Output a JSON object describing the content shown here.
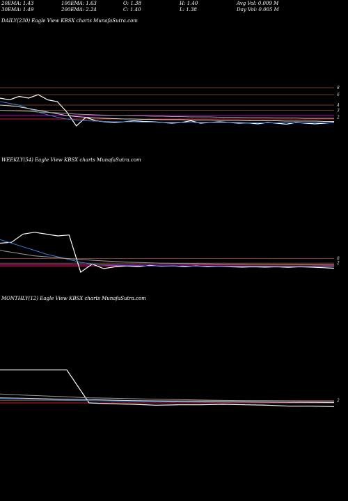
{
  "header": {
    "stats": [
      {
        "id": "ema20",
        "text": "20EMA: 1.43"
      },
      {
        "id": "ema100",
        "text": "100EMA: 1.63"
      },
      {
        "id": "open",
        "text": "O: 1.38"
      },
      {
        "id": "high",
        "text": "H: 1.40"
      },
      {
        "id": "avgvol",
        "text": "Avg Vol: 0.009 M"
      },
      {
        "id": "ema30",
        "text": "30EMA: 1.49"
      },
      {
        "id": "ema200",
        "text": "200EMA: 2.24"
      },
      {
        "id": "close",
        "text": "C: 1.40"
      },
      {
        "id": "low",
        "text": "L: 1.38"
      },
      {
        "id": "dayvol",
        "text": "Day Vol: 0.005 M"
      }
    ]
  },
  "chart_data": [
    {
      "type": "line",
      "title": "DAILY(230) Eagle   View  KBSX  charts MunafaSutra.com",
      "ylim": [
        1.2,
        2.5
      ],
      "y_axis_labels": [
        "8",
        "6",
        "4",
        "3",
        "2"
      ],
      "y_axis_values": [
        2.4,
        2.2,
        1.9,
        1.75,
        1.55
      ],
      "hlines": [
        {
          "y": 2.4,
          "color": "#a0522d"
        },
        {
          "y": 2.2,
          "color": "#a0522d"
        },
        {
          "y": 1.9,
          "color": "#a0522d"
        },
        {
          "y": 1.75,
          "color": "#a0522d"
        },
        {
          "y": 1.6,
          "color": "#ff00ff"
        },
        {
          "y": 1.5,
          "color": "#ff3030"
        }
      ],
      "series": [
        {
          "color": "#ffffff",
          "values": [
            2.1,
            2.05,
            2.15,
            2.1,
            2.2,
            2.05,
            2.0,
            1.7,
            1.3,
            1.55,
            1.45,
            1.42,
            1.4,
            1.42,
            1.45,
            1.43,
            1.42,
            1.4,
            1.38,
            1.4,
            1.45,
            1.38,
            1.4,
            1.42,
            1.4,
            1.38,
            1.39,
            1.36,
            1.4,
            1.38,
            1.35,
            1.4,
            1.38,
            1.36,
            1.38,
            1.4
          ]
        },
        {
          "color": "#3a7bd5",
          "values": [
            2.0,
            1.95,
            1.9,
            1.8,
            1.7,
            1.62,
            1.55,
            1.5,
            1.47,
            1.45,
            1.44,
            1.43,
            1.42,
            1.42,
            1.42,
            1.41,
            1.41,
            1.4,
            1.4,
            1.4,
            1.4,
            1.4,
            1.4,
            1.4,
            1.4,
            1.4,
            1.39,
            1.39,
            1.39,
            1.39,
            1.39,
            1.39,
            1.39,
            1.39,
            1.39,
            1.39
          ]
        },
        {
          "color": "#dddddd",
          "values": [
            1.9,
            1.88,
            1.85,
            1.8,
            1.75,
            1.7,
            1.65,
            1.6,
            1.57,
            1.55,
            1.53,
            1.52,
            1.51,
            1.5,
            1.5,
            1.49,
            1.49,
            1.48,
            1.48,
            1.48,
            1.47,
            1.47,
            1.47,
            1.46,
            1.46,
            1.46,
            1.45,
            1.45,
            1.45,
            1.45,
            1.44,
            1.44,
            1.44,
            1.44,
            1.43,
            1.43
          ]
        },
        {
          "color": "#9e9e9e",
          "values": [
            1.75,
            1.74,
            1.73,
            1.72,
            1.7,
            1.69,
            1.68,
            1.66,
            1.64,
            1.63,
            1.62,
            1.61,
            1.6,
            1.6,
            1.59,
            1.59,
            1.58,
            1.58,
            1.57,
            1.57,
            1.56,
            1.56,
            1.56,
            1.55,
            1.55,
            1.55,
            1.54,
            1.54,
            1.54,
            1.53,
            1.53,
            1.53,
            1.52,
            1.52,
            1.52,
            1.52
          ]
        }
      ]
    },
    {
      "type": "line",
      "title": "WEEKLY(54) Eagle   View  KBSX  charts MunafaSutra.com",
      "ylim": [
        1.2,
        3.5
      ],
      "y_axis_labels": [
        "8",
        "2"
      ],
      "y_axis_values": [
        1.75,
        1.5
      ],
      "hlines": [
        {
          "y": 1.75,
          "color": "#a0522d"
        },
        {
          "y": 1.5,
          "color": "#a0522d"
        },
        {
          "y": 1.42,
          "color": "#ff00ff"
        },
        {
          "y": 1.35,
          "color": "#ff3030"
        }
      ],
      "series": [
        {
          "color": "#ffffff",
          "values": [
            2.6,
            2.65,
            3.1,
            3.2,
            3.1,
            3.0,
            3.05,
            1.0,
            1.45,
            1.2,
            1.3,
            1.35,
            1.3,
            1.38,
            1.33,
            1.35,
            1.3,
            1.35,
            1.3,
            1.33,
            1.3,
            1.28,
            1.3,
            1.28,
            1.3,
            1.27,
            1.3,
            1.28,
            1.25,
            1.22
          ]
        },
        {
          "color": "#3a7bd5",
          "values": [
            2.8,
            2.6,
            2.4,
            2.2,
            2.0,
            1.85,
            1.7,
            1.55,
            1.45,
            1.4,
            1.38,
            1.37,
            1.36,
            1.35,
            1.35,
            1.34,
            1.34,
            1.33,
            1.33,
            1.33,
            1.32,
            1.32,
            1.32,
            1.32,
            1.31,
            1.31,
            1.31,
            1.31,
            1.3,
            1.3
          ]
        },
        {
          "color": "#9e9e9e",
          "values": [
            2.2,
            2.1,
            2.0,
            1.9,
            1.85,
            1.8,
            1.75,
            1.7,
            1.66,
            1.62,
            1.59,
            1.56,
            1.54,
            1.52,
            1.5,
            1.49,
            1.48,
            1.47,
            1.46,
            1.45,
            1.44,
            1.44,
            1.43,
            1.43,
            1.42,
            1.42,
            1.41,
            1.41,
            1.4,
            1.4
          ]
        }
      ]
    },
    {
      "type": "line",
      "title": "MONTHLY(12) Eagle   View  KBSX  charts MunafaSutra.com",
      "ylim": [
        1.0,
        5.5
      ],
      "y_axis_labels": [
        "2"
      ],
      "y_axis_values": [
        1.7
      ],
      "hlines": [
        {
          "y": 1.7,
          "color": "#a0522d"
        },
        {
          "y": 1.45,
          "color": "#ff3030"
        }
      ],
      "series": [
        {
          "color": "#ffffff",
          "values": [
            5.0,
            5.0,
            5.0,
            5.0,
            1.45,
            1.35,
            1.3,
            1.2,
            1.25,
            1.25,
            1.3,
            1.25,
            1.2,
            1.1,
            1.1,
            1.05
          ]
        },
        {
          "color": "#3a7bd5",
          "values": [
            1.9,
            1.85,
            1.8,
            1.75,
            1.7,
            1.65,
            1.6,
            1.58,
            1.56,
            1.55,
            1.54,
            1.53,
            1.52,
            1.51,
            1.5,
            1.5
          ]
        },
        {
          "color": "#dddddd",
          "values": [
            2.0,
            1.95,
            1.9,
            1.85,
            1.8,
            1.75,
            1.7,
            1.66,
            1.62,
            1.6,
            1.58,
            1.56,
            1.54,
            1.52,
            1.5,
            1.48
          ]
        },
        {
          "color": "#9e9e9e",
          "values": [
            2.4,
            2.3,
            2.2,
            2.1,
            2.0,
            1.95,
            1.9,
            1.85,
            1.8,
            1.76,
            1.72,
            1.7,
            1.68,
            1.65,
            1.62,
            1.6
          ]
        }
      ]
    }
  ]
}
